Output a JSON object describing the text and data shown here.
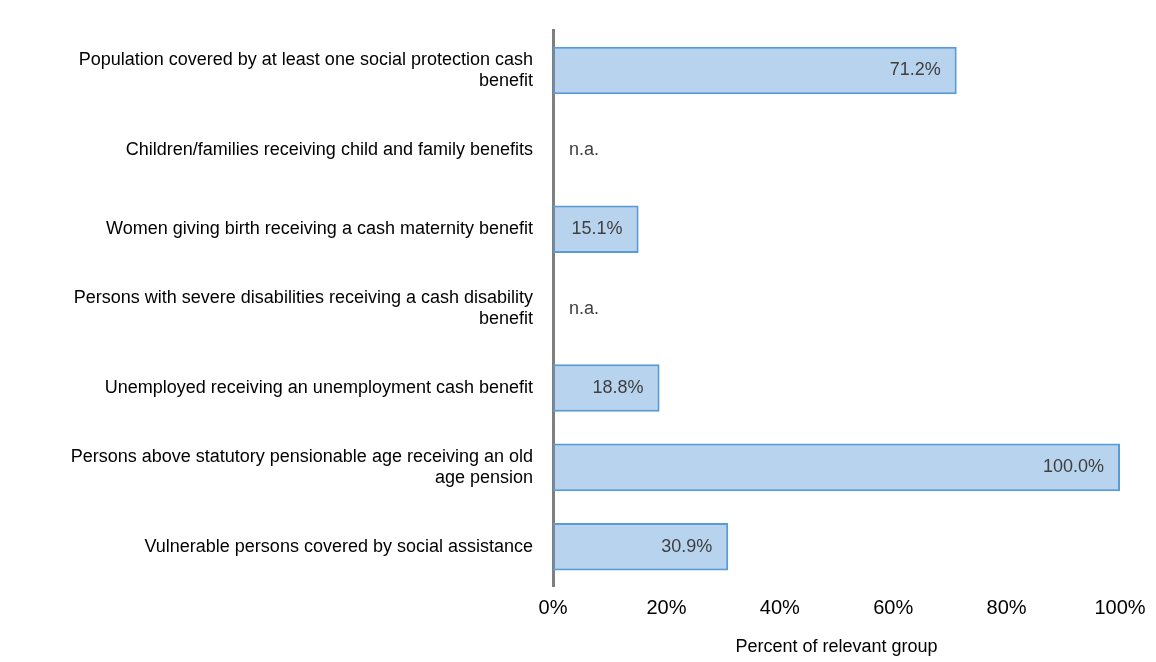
{
  "chart_data": {
    "type": "bar",
    "orientation": "horizontal",
    "categories": [
      "Population covered by at least one social protection cash benefit",
      "Children/families receiving child and family benefits",
      "Women giving birth receiving a cash maternity benefit",
      "Persons with severe disabilities receiving a cash disability benefit",
      "Unemployed receiving an unemployment cash benefit",
      "Persons above statutory pensionable age receiving an old age pension",
      "Vulnerable persons covered by social assistance"
    ],
    "values": [
      71.2,
      null,
      15.1,
      null,
      18.8,
      100.0,
      30.9
    ],
    "value_labels": [
      "71.2%",
      "n.a.",
      "15.1%",
      "n.a.",
      "18.8%",
      "100.0%",
      "30.9%"
    ],
    "color": "#5b9bd5",
    "xlabel": "Percent of relevant group",
    "xlim": [
      0,
      100
    ],
    "xticks": [
      {
        "value": 0,
        "label": "0%"
      },
      {
        "value": 20,
        "label": "20%"
      },
      {
        "value": 40,
        "label": "40%"
      },
      {
        "value": 60,
        "label": "60%"
      },
      {
        "value": 80,
        "label": "80%"
      },
      {
        "value": 100,
        "label": "100%"
      }
    ],
    "grid": false,
    "legend": false
  }
}
